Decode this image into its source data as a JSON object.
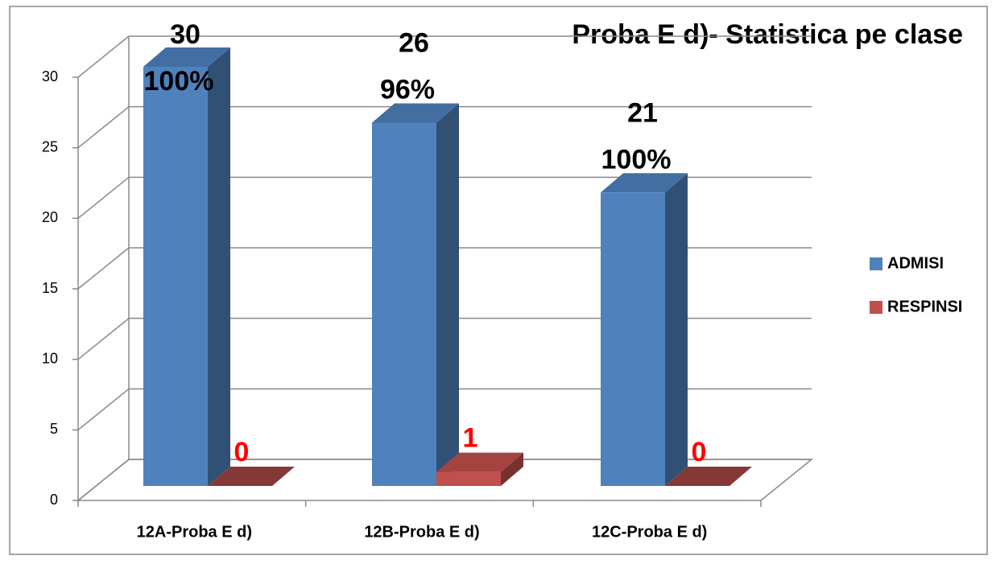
{
  "chart_data": {
    "type": "bar3d",
    "title": "Proba E d)- Statistica pe clase",
    "categories": [
      "12A-Proba E d)",
      "12B-Proba E d)",
      "12C-Proba E d)"
    ],
    "series": [
      {
        "name": "ADMISI",
        "color": "#4f81bd",
        "values": [
          30,
          26,
          21
        ],
        "percent_labels": [
          "100%",
          "96%",
          "100%"
        ]
      },
      {
        "name": "RESPINSI",
        "color": "#c0504d",
        "values": [
          0,
          1,
          0
        ]
      }
    ],
    "ylim": [
      0,
      30
    ],
    "yticks": [
      0,
      5,
      10,
      15,
      20,
      25,
      30
    ],
    "grid": true,
    "legend": "right"
  }
}
